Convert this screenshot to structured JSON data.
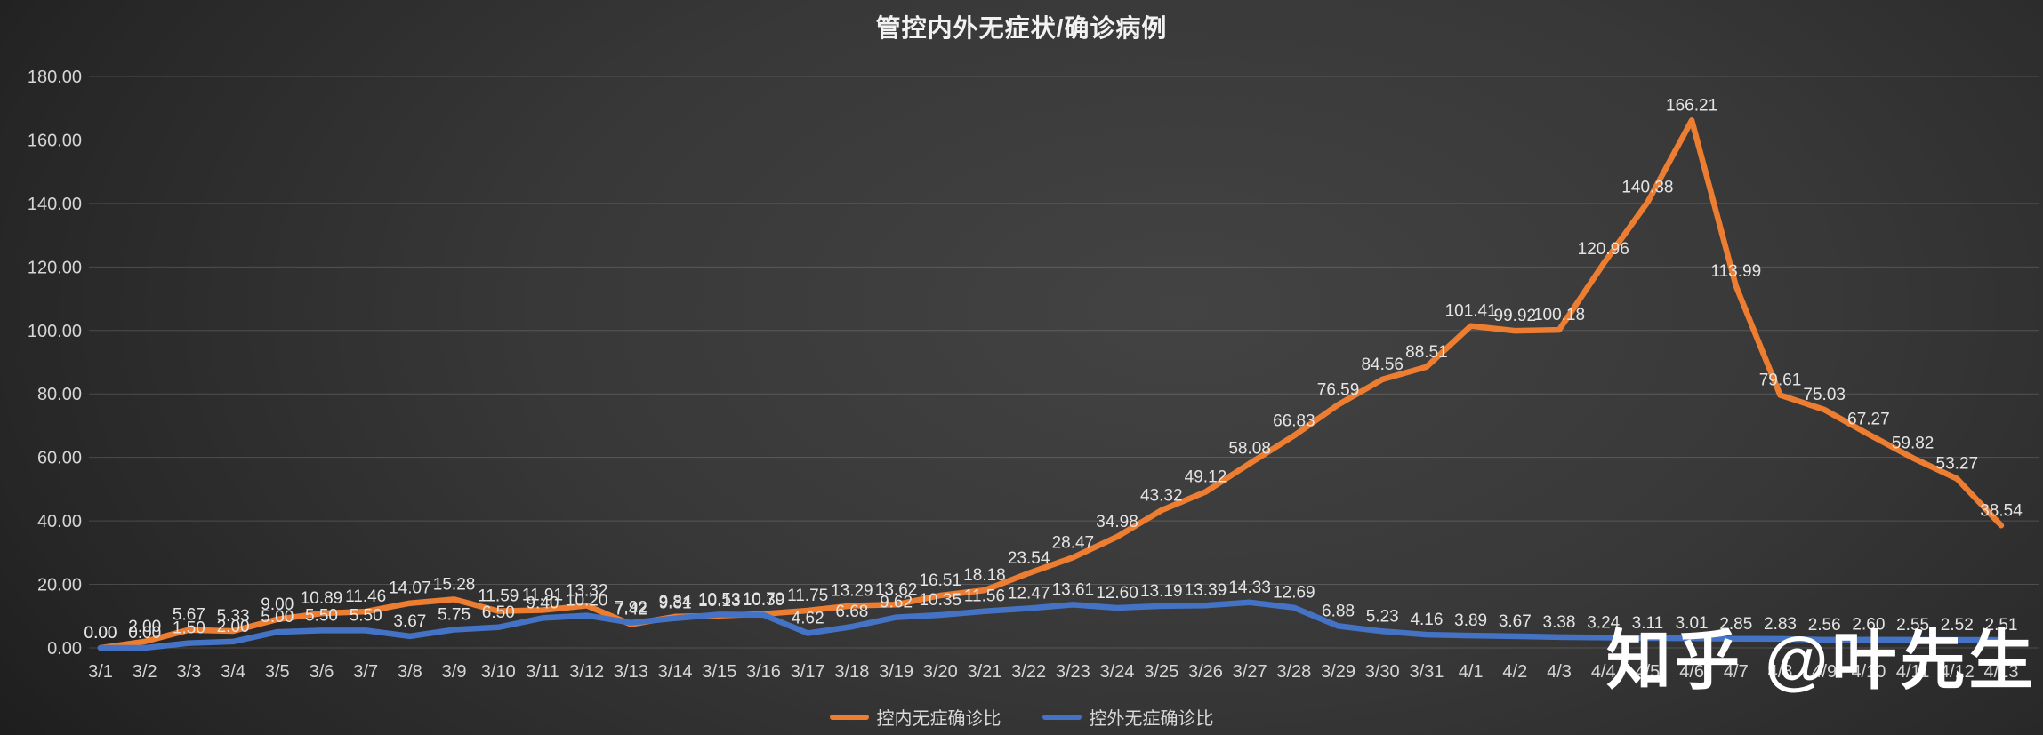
{
  "title": "管控内外无症状/确诊病例",
  "watermark": {
    "text": "知乎 @叶先生"
  },
  "colors": {
    "series_inner": "#ED7D31",
    "series_outer": "#4472C4",
    "gridline": "rgba(255,255,255,0.16)",
    "axis_text": "#d6d6d6",
    "data_label_text": "#e4e4e4",
    "title_text": "#f2f2f2",
    "background_dark": "#1d1d1d",
    "background_light": "#434343"
  },
  "chart_data": {
    "type": "line",
    "title": "管控内外无症状/确诊病例",
    "xlabel": "",
    "ylabel": "",
    "ylim": [
      0,
      180
    ],
    "ytick_step": 20,
    "yticks": [
      "0.00",
      "20.00",
      "40.00",
      "60.00",
      "80.00",
      "100.00",
      "120.00",
      "140.00",
      "160.00",
      "180.00"
    ],
    "grid": true,
    "legend_position": "bottom",
    "data_labels": true,
    "categories": [
      "3/1",
      "3/2",
      "3/3",
      "3/4",
      "3/5",
      "3/6",
      "3/7",
      "3/8",
      "3/9",
      "3/10",
      "3/11",
      "3/12",
      "3/13",
      "3/14",
      "3/15",
      "3/16",
      "3/17",
      "3/18",
      "3/19",
      "3/20",
      "3/21",
      "3/22",
      "3/23",
      "3/24",
      "3/25",
      "3/26",
      "3/27",
      "3/28",
      "3/29",
      "3/30",
      "3/31",
      "4/1",
      "4/2",
      "4/3",
      "4/4",
      "4/5",
      "4/6",
      "4/7",
      "4/8",
      "4/9",
      "4/10",
      "4/11",
      "4/12",
      "4/13"
    ],
    "series": [
      {
        "name": "控内无症确诊比",
        "color": "#ED7D31",
        "values": [
          0.0,
          2.0,
          5.67,
          5.33,
          9.0,
          10.89,
          11.46,
          14.07,
          15.28,
          11.59,
          11.91,
          13.32,
          7.42,
          9.84,
          10.13,
          10.7,
          11.75,
          13.29,
          13.62,
          16.51,
          18.18,
          23.54,
          28.47,
          34.98,
          43.32,
          49.12,
          58.08,
          66.83,
          76.59,
          84.56,
          88.51,
          101.41,
          99.92,
          100.18,
          120.96,
          140.38,
          166.21,
          113.99,
          79.61,
          75.03,
          67.27,
          59.82,
          53.27,
          38.54
        ]
      },
      {
        "name": "控外无症确诊比",
        "color": "#4472C4",
        "values": [
          0.0,
          0.0,
          1.5,
          2.0,
          5.0,
          5.5,
          5.5,
          3.67,
          5.75,
          6.5,
          9.4,
          10.2,
          7.92,
          9.31,
          10.53,
          10.39,
          4.62,
          6.68,
          9.62,
          10.35,
          11.56,
          12.47,
          13.61,
          12.6,
          13.19,
          13.39,
          14.33,
          12.69,
          6.88,
          5.23,
          4.16,
          3.89,
          3.67,
          3.38,
          3.24,
          3.11,
          3.01,
          2.85,
          2.83,
          2.56,
          2.6,
          2.55,
          2.52,
          2.51
        ]
      }
    ]
  }
}
